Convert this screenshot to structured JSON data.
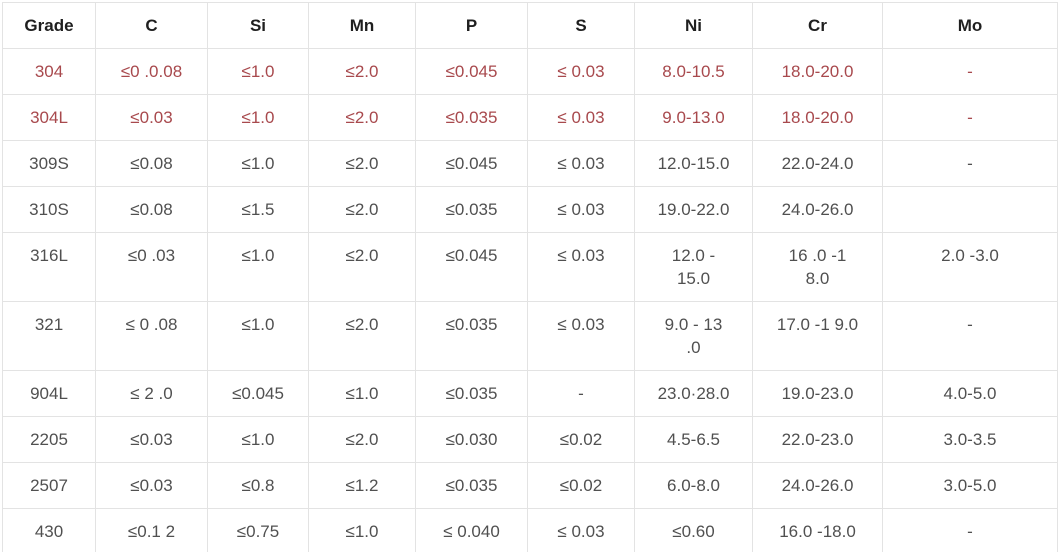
{
  "chart_data": {
    "type": "table",
    "title": "Stainless steel grade chemical composition table",
    "columns": [
      "Grade",
      "C",
      "Si",
      "Mn",
      "P",
      "S",
      "Ni",
      "Cr",
      "Mo"
    ],
    "rows": [
      {
        "grade": "304",
        "highlighted": true,
        "values": [
          "≤0 .0.08",
          "≤1.0",
          "≤2.0",
          "≤0.045",
          "≤ 0.03",
          "8.0-10.5",
          "18.0-20.0",
          "-"
        ]
      },
      {
        "grade": "304L",
        "highlighted": true,
        "values": [
          "≤0.03",
          "≤1.0",
          "≤2.0",
          "≤0.035",
          "≤ 0.03",
          "9.0-13.0",
          "18.0-20.0",
          "-"
        ]
      },
      {
        "grade": "309S",
        "highlighted": false,
        "values": [
          "≤0.08",
          "≤1.0",
          "≤2.0",
          "≤0.045",
          "≤ 0.03",
          "12.0-15.0",
          "22.0-24.0",
          "-"
        ]
      },
      {
        "grade": "310S",
        "highlighted": false,
        "values": [
          "≤0.08",
          "≤1.5",
          "≤2.0",
          "≤0.035",
          "≤ 0.03",
          "19.0-22.0",
          "24.0-26.0",
          ""
        ]
      },
      {
        "grade": "316L",
        "highlighted": false,
        "values": [
          "≤0 .03",
          "≤1.0",
          "≤2.0",
          "≤0.045",
          "≤ 0.03",
          "12.0 -\n15.0",
          "16 .0 -1\n8.0",
          "2.0 -3.0"
        ]
      },
      {
        "grade": "321",
        "highlighted": false,
        "values": [
          "≤ 0 .08",
          "≤1.0",
          "≤2.0",
          "≤0.035",
          "≤ 0.03",
          "9.0 - 13\n.0",
          "17.0 -1 9.0",
          "-"
        ]
      },
      {
        "grade": "904L",
        "highlighted": false,
        "values": [
          "≤ 2 .0",
          "≤0.045",
          "≤1.0",
          "≤0.035",
          "-",
          "23.0·28.0",
          "19.0-23.0",
          "4.0-5.0"
        ]
      },
      {
        "grade": "2205",
        "highlighted": false,
        "values": [
          "≤0.03",
          "≤1.0",
          "≤2.0",
          "≤0.030",
          "≤0.02",
          "4.5-6.5",
          "22.0-23.0",
          "3.0-3.5"
        ]
      },
      {
        "grade": "2507",
        "highlighted": false,
        "values": [
          "≤0.03",
          "≤0.8",
          "≤1.2",
          "≤0.035",
          "≤0.02",
          "6.0-8.0",
          "24.0-26.0",
          "3.0-5.0"
        ]
      },
      {
        "grade": "430",
        "highlighted": false,
        "values": [
          "≤0.1 2",
          "≤0.75",
          "≤1.0",
          "≤ 0.040",
          "≤ 0.03",
          "≤0.60",
          "16.0 -18.0",
          "-"
        ]
      }
    ]
  },
  "colors": {
    "highlight_text": "#a8494d",
    "header_text": "#1f1f1f",
    "body_text": "#505050",
    "border": "#e3e3e3",
    "background": "#ffffff"
  }
}
